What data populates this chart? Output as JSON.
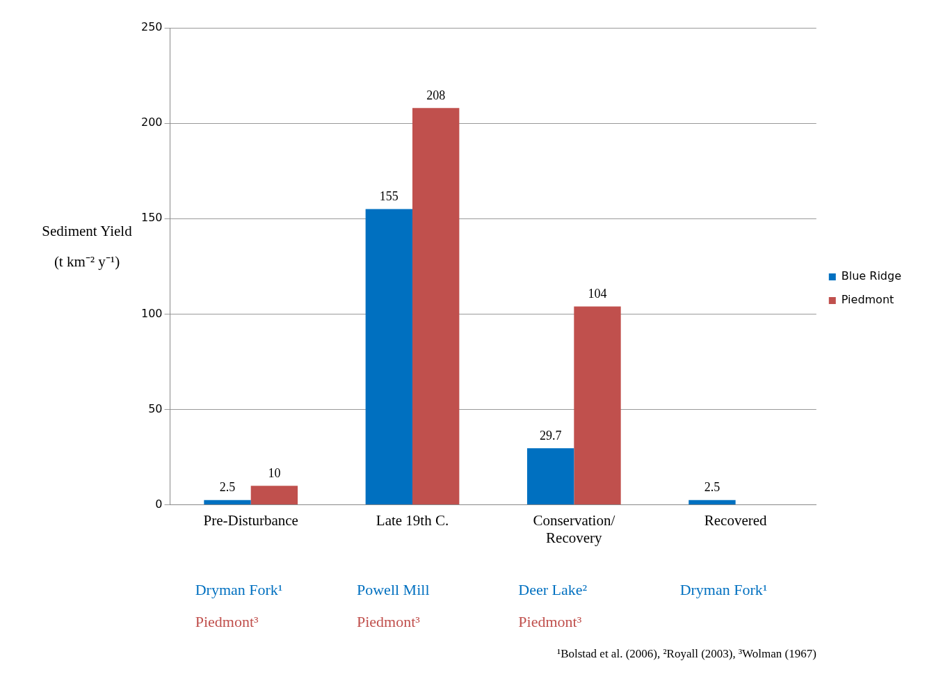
{
  "chart_data": {
    "type": "bar",
    "ylabel": "Sediment Yield (t km⁻² y⁻¹)",
    "categories": [
      "Pre-Disturbance",
      "Late 19th C.",
      "Conservation/ Recovery",
      "Recovered"
    ],
    "series": [
      {
        "name": "Blue Ridge",
        "color": "#0070c0",
        "values": [
          2.5,
          155,
          29.7,
          2.5
        ]
      },
      {
        "name": "Piedmont",
        "color": "#c0504d",
        "values": [
          10,
          208,
          104,
          null
        ]
      }
    ],
    "ylim": [
      0,
      250
    ],
    "yticks": [
      0,
      50,
      100,
      150,
      200,
      250
    ],
    "grid": "y",
    "legend": "right",
    "data_labels": true,
    "annotations": [
      "Dryman Fork¹",
      "Powell Mill",
      "Deer Lake²",
      "Dryman Fork¹",
      "Piedmont³",
      "Piedmont³",
      "Piedmont³",
      "¹Bolstad et al. (2006), ²Royall (2003), ³Wolman (1967)"
    ]
  }
}
